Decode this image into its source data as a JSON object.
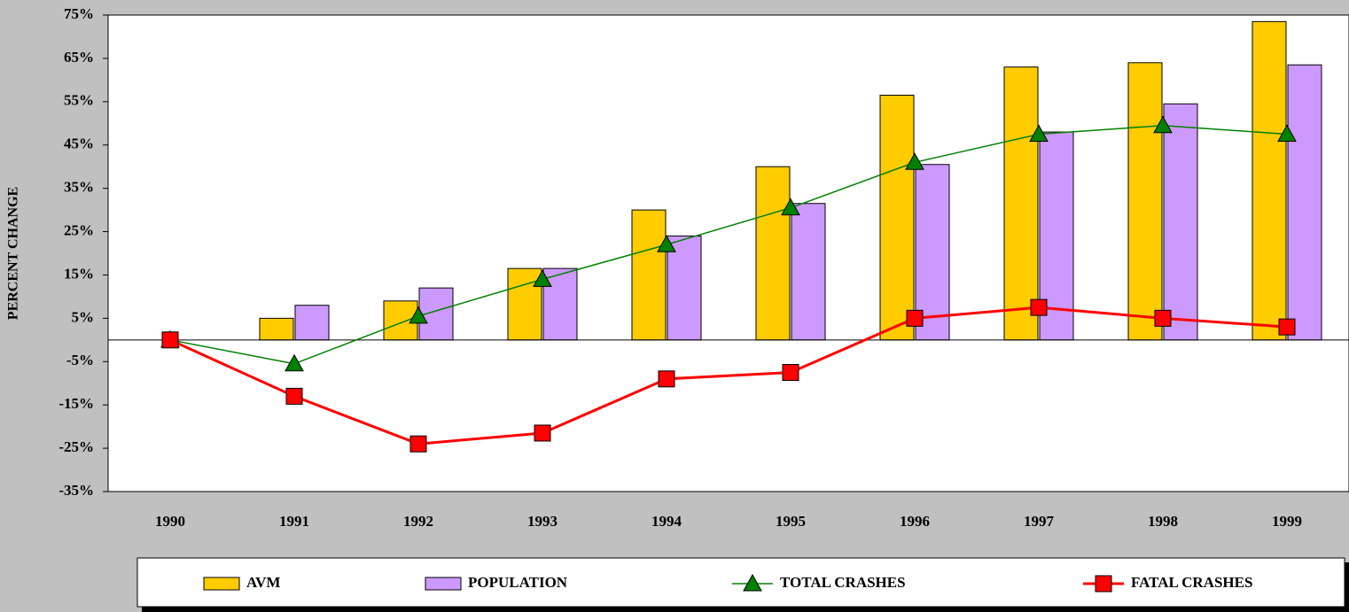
{
  "chart_data": {
    "type": "bar_line",
    "y_axis_label": "PERCENT CHANGE",
    "categories": [
      "1990",
      "1991",
      "1992",
      "1993",
      "1994",
      "1995",
      "1996",
      "1997",
      "1998",
      "1999"
    ],
    "series": [
      {
        "name": "AVM",
        "type": "bar",
        "color": "#ffcc00",
        "values": [
          0,
          5,
          9,
          16.5,
          30,
          40,
          56.5,
          63,
          64,
          73.5
        ]
      },
      {
        "name": "POPULATION",
        "type": "bar",
        "color": "#cc99ff",
        "values": [
          0,
          8,
          12,
          16.5,
          24,
          31.5,
          40.5,
          48,
          54.5,
          63.5
        ]
      },
      {
        "name": "TOTAL CRASHES",
        "type": "line",
        "marker": "triangle",
        "color": "#008000",
        "values": [
          0,
          -5.5,
          5.5,
          14,
          22,
          30.5,
          41,
          47.5,
          49.5,
          47.5
        ]
      },
      {
        "name": "FATAL CRASHES",
        "type": "line",
        "marker": "square",
        "color": "#ff0000",
        "values": [
          0,
          -13,
          -24,
          -21.5,
          -9,
          -7.5,
          5,
          7.5,
          5,
          3
        ]
      }
    ],
    "ylim": [
      -35,
      75
    ],
    "yticks": [
      {
        "value": 75,
        "label": "75%"
      },
      {
        "value": 65,
        "label": "65%"
      },
      {
        "value": 55,
        "label": "55%"
      },
      {
        "value": 45,
        "label": "45%"
      },
      {
        "value": 35,
        "label": "35%"
      },
      {
        "value": 25,
        "label": "25%"
      },
      {
        "value": 15,
        "label": "15%"
      },
      {
        "value": 5,
        "label": "5%"
      },
      {
        "value": -5,
        "label": "-5%"
      },
      {
        "value": -15,
        "label": "-15%"
      },
      {
        "value": -25,
        "label": "-25%"
      },
      {
        "value": -35,
        "label": "-35%"
      }
    ],
    "legend": "bottom"
  }
}
